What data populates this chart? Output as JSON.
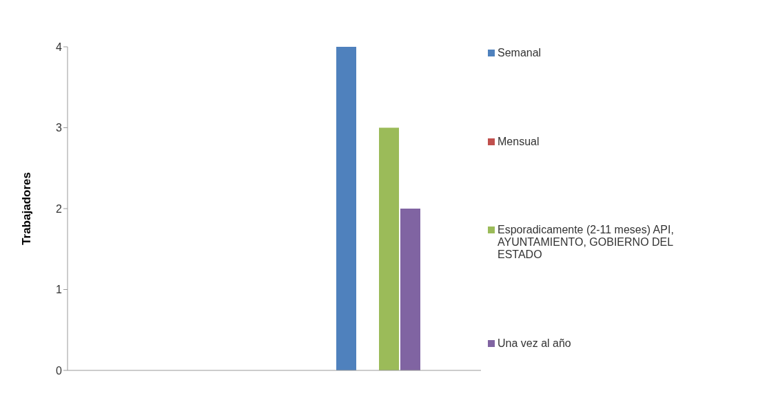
{
  "chart_data": {
    "type": "bar",
    "ylabel": "Trabajadores",
    "categories": [
      null,
      null
    ],
    "series": [
      {
        "name": "Semanal",
        "color": "#4f81bd",
        "values": [
          null,
          4
        ]
      },
      {
        "name": "Mensual",
        "color": "#c0504d",
        "values": [
          null,
          0
        ]
      },
      {
        "name": "Esporadicamente (2-11 meses) API, AYUNTAMIENTO, GOBIERNO DEL ESTADO",
        "color": "#9bbb59",
        "values": [
          null,
          3
        ]
      },
      {
        "name": "Una vez al año",
        "color": "#8064a2",
        "values": [
          null,
          2
        ]
      }
    ],
    "ylim": [
      0,
      4
    ],
    "yticks": [
      0,
      1,
      2,
      3,
      4
    ],
    "grid": false,
    "legend": "right"
  }
}
